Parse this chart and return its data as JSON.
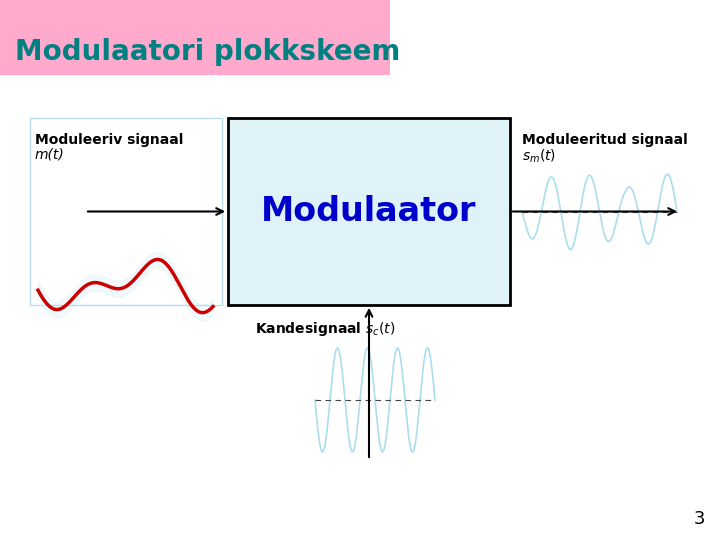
{
  "title": "Modulaatori plokkskeem",
  "title_color": "#008080",
  "title_bg": "#ffaacc",
  "bg_color": "#ffffff",
  "box_label": "Modulaator",
  "box_label_color": "#0000cc",
  "box_bg": "#dff2f7",
  "box_border": "#000000",
  "label_left_line1": "Moduleeriv signaal",
  "label_left_line2": "m(t)",
  "label_right_line1": "Moduleeritud signaal",
  "label_right_line2": "s_m(t)",
  "label_bottom_text": "Kandesignaal ",
  "label_bottom_sub": "s_c(t)",
  "page_number": "3",
  "arrow_color": "#000000",
  "signal_wave_color": "#cc0000",
  "carrier_wave_color": "#aaddee",
  "modulated_wave_color": "#aaddee",
  "left_box_color": "#bbddee"
}
